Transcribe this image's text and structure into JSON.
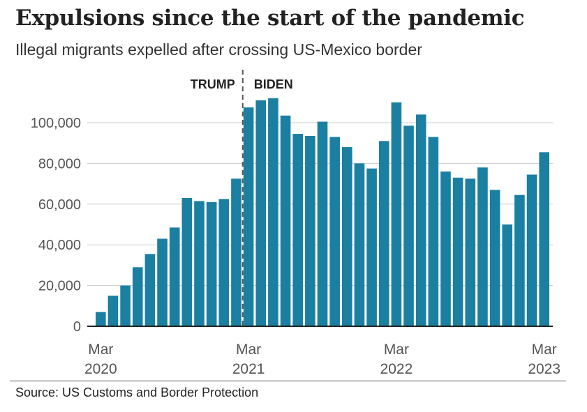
{
  "title": "Expulsions since the start of the pandemic",
  "subtitle": "Illegal migrants expelled after crossing US-Mexico border",
  "source": "Source: US Customs and Border Protection",
  "colors": {
    "bar": "#1a7fa0",
    "grid": "#cccccc",
    "axis": "#222222",
    "divider": "#555555",
    "tick_text": "#555555",
    "annotation_text": "#222222"
  },
  "chart_data": {
    "type": "bar",
    "categories": [
      "Mar 2020",
      "Apr 2020",
      "May 2020",
      "Jun 2020",
      "Jul 2020",
      "Aug 2020",
      "Sep 2020",
      "Oct 2020",
      "Nov 2020",
      "Dec 2020",
      "Jan 2021",
      "Feb 2021",
      "Mar 2021",
      "Apr 2021",
      "May 2021",
      "Jun 2021",
      "Jul 2021",
      "Aug 2021",
      "Sep 2021",
      "Oct 2021",
      "Nov 2021",
      "Dec 2021",
      "Jan 2022",
      "Feb 2022",
      "Mar 2022",
      "Apr 2022",
      "May 2022",
      "Jun 2022",
      "Jul 2022",
      "Aug 2022",
      "Sep 2022",
      "Oct 2022",
      "Nov 2022",
      "Dec 2022",
      "Jan 2023",
      "Feb 2023",
      "Mar 2023"
    ],
    "values": [
      7000,
      15000,
      20000,
      29000,
      35500,
      43000,
      48500,
      63000,
      61500,
      61000,
      62500,
      72500,
      107500,
      111000,
      112000,
      103500,
      94500,
      93500,
      100500,
      93000,
      88000,
      80000,
      77500,
      91000,
      110000,
      98500,
      104000,
      93000,
      76000,
      73000,
      72500,
      78000,
      67000,
      50000,
      64500,
      74500,
      85500
    ],
    "ylim": [
      0,
      120000
    ],
    "yticks": [
      {
        "value": 0,
        "label": "0"
      },
      {
        "value": 20000,
        "label": "20,000"
      },
      {
        "value": 40000,
        "label": "40,000"
      },
      {
        "value": 60000,
        "label": "60,000"
      },
      {
        "value": 80000,
        "label": "80,000"
      },
      {
        "value": 100000,
        "label": "100,000"
      }
    ],
    "xticks": [
      {
        "category": "Mar 2020",
        "line1": "Mar",
        "line2": "2020"
      },
      {
        "category": "Mar 2021",
        "line1": "Mar",
        "line2": "2021"
      },
      {
        "category": "Mar 2022",
        "line1": "Mar",
        "line2": "2022"
      },
      {
        "category": "Mar 2023",
        "line1": "Mar",
        "line2": "2023"
      }
    ],
    "xlabel": "",
    "ylabel": "",
    "grid": true,
    "divider": {
      "after_category": "Feb 2021",
      "left_label": "TRUMP",
      "right_label": "BIDEN"
    }
  }
}
